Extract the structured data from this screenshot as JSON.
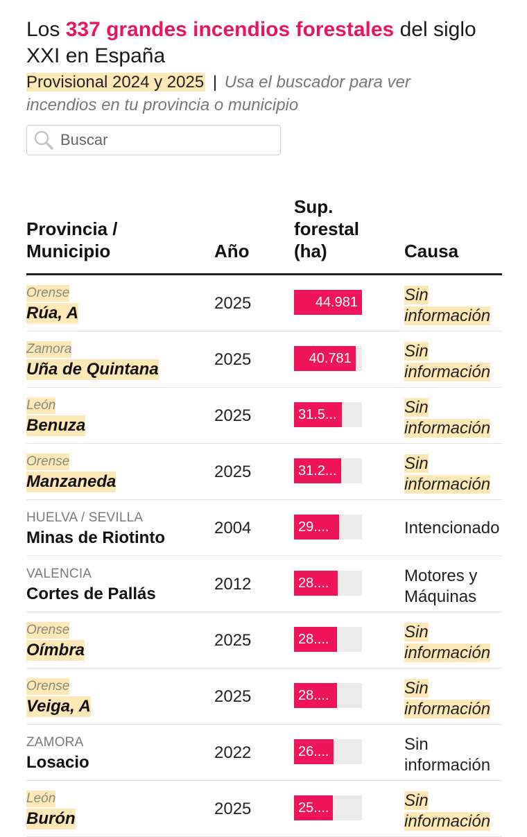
{
  "header": {
    "title_pre": "Los",
    "title_highlight": "337 grandes incendios forestales",
    "title_post": "del siglo XXI en España",
    "provisional": "Provisional 2024 y 2025",
    "separator": "|",
    "hint": "Usa el buscador para ver incendios en tu provincia o municipio"
  },
  "search": {
    "placeholder": "Buscar",
    "icon": "search-icon"
  },
  "columns": {
    "province": "Provincia / Municipio",
    "year": "Año",
    "area": "Sup. forestal (ha)",
    "cause": "Causa"
  },
  "colors": {
    "accent": "#f0145a",
    "highlight": "#fde9b8",
    "track": "#ebebeb"
  },
  "rows": [
    {
      "province": "Orense",
      "municipality": "Rúa, A",
      "year": "2025",
      "area": 44981,
      "area_label": "44.981",
      "cause_1": "Sin",
      "cause_2": "información",
      "provisional": true
    },
    {
      "province": "Zamora",
      "municipality": "Uña de Quintana",
      "year": "2025",
      "area": 40781,
      "area_label": "40.781",
      "cause_1": "Sin",
      "cause_2": "información",
      "provisional": true
    },
    {
      "province": "León",
      "municipality": "Benuza",
      "year": "2025",
      "area": 31500,
      "area_label": "31.5...",
      "cause_1": "Sin",
      "cause_2": "información",
      "provisional": true
    },
    {
      "province": "Orense",
      "municipality": "Manzaneda",
      "year": "2025",
      "area": 31200,
      "area_label": "31.2...",
      "cause_1": "Sin",
      "cause_2": "información",
      "provisional": true
    },
    {
      "province": "HUELVA / SEVILLA",
      "municipality": "Minas de Riotinto",
      "year": "2004",
      "area": 29800,
      "area_label": "29....",
      "cause_1": "Intencionado",
      "cause_2": "",
      "provisional": false
    },
    {
      "province": "VALENCIA",
      "municipality": "Cortes de Pallás",
      "year": "2012",
      "area": 28800,
      "area_label": "28....",
      "cause_1": "Motores y",
      "cause_2": "Máquinas",
      "provisional": false
    },
    {
      "province": "Orense",
      "municipality": "Oímbra",
      "year": "2025",
      "area": 28600,
      "area_label": "28....",
      "cause_1": "Sin",
      "cause_2": "información",
      "provisional": true
    },
    {
      "province": "Orense",
      "municipality": "Veiga, A",
      "year": "2025",
      "area": 28400,
      "area_label": "28....",
      "cause_1": "Sin",
      "cause_2": "información",
      "provisional": true
    },
    {
      "province": "ZAMORA",
      "municipality": "Losacio",
      "year": "2022",
      "area": 26000,
      "area_label": "26....",
      "cause_1": "Sin",
      "cause_2": "información",
      "provisional": false
    },
    {
      "province": "León",
      "municipality": "Burón",
      "year": "2025",
      "area": 25500,
      "area_label": "25....",
      "cause_1": "Sin",
      "cause_2": "información",
      "provisional": true
    }
  ]
}
